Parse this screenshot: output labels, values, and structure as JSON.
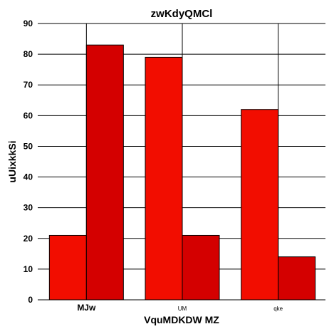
{
  "chart_data": {
    "type": "bar",
    "title": "zwKdyQMCl",
    "xlabel": "VquMDKDW  MZ",
    "ylabel": "uUixkkSi",
    "categories": [
      "MJw",
      "UM",
      "qke"
    ],
    "series": [
      {
        "values": [
          21,
          79,
          62
        ],
        "color": "#f20d00"
      },
      {
        "values": [
          83,
          21,
          14
        ],
        "color": "#d40000"
      }
    ],
    "ylim": [
      0,
      90
    ],
    "yticks": [
      "0",
      "10",
      "20",
      "30",
      "40",
      "50",
      "60",
      "70",
      "80",
      "90"
    ],
    "grid": true,
    "legend": "none"
  }
}
